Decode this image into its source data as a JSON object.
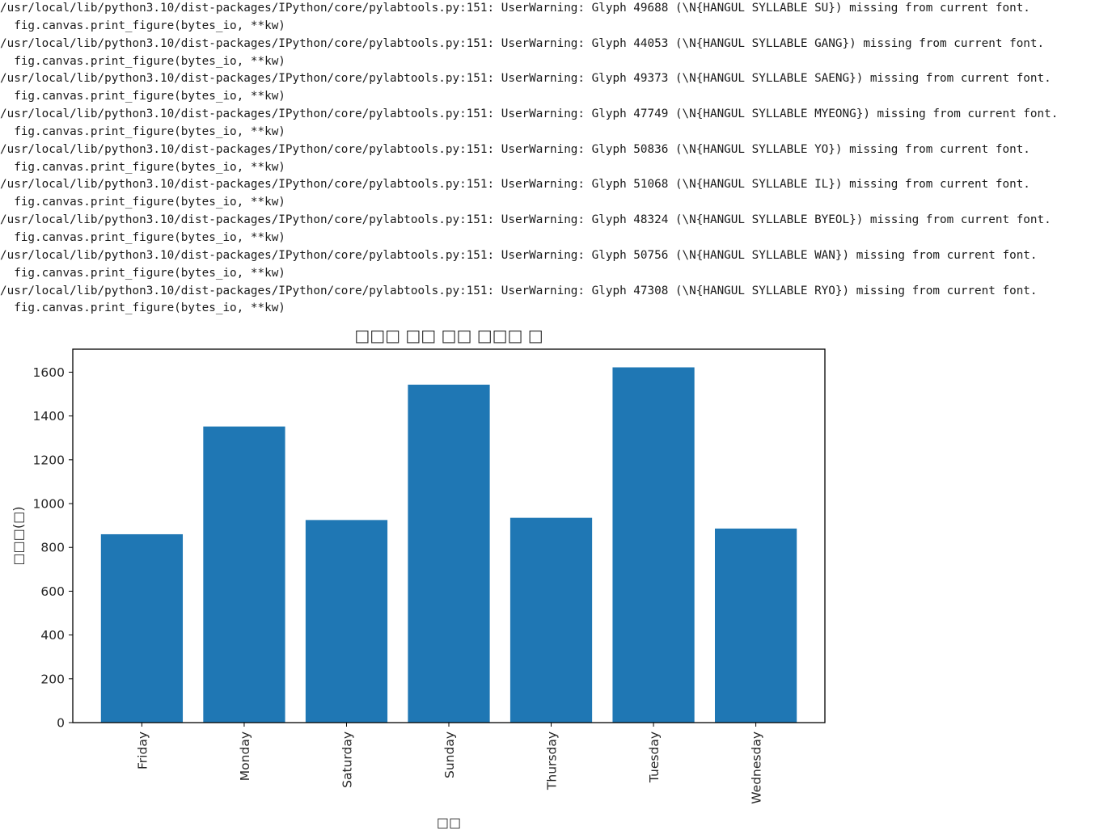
{
  "output": {
    "lines": [
      "/usr/local/lib/python3.10/dist-packages/IPython/core/pylabtools.py:151: UserWarning: Glyph 49688 (\\N{HANGUL SYLLABLE SU}) missing from current font.",
      "  fig.canvas.print_figure(bytes_io, **kw)",
      "/usr/local/lib/python3.10/dist-packages/IPython/core/pylabtools.py:151: UserWarning: Glyph 44053 (\\N{HANGUL SYLLABLE GANG}) missing from current font.",
      "  fig.canvas.print_figure(bytes_io, **kw)",
      "/usr/local/lib/python3.10/dist-packages/IPython/core/pylabtools.py:151: UserWarning: Glyph 49373 (\\N{HANGUL SYLLABLE SAENG}) missing from current font.",
      "  fig.canvas.print_figure(bytes_io, **kw)",
      "/usr/local/lib/python3.10/dist-packages/IPython/core/pylabtools.py:151: UserWarning: Glyph 47749 (\\N{HANGUL SYLLABLE MYEONG}) missing from current font.",
      "  fig.canvas.print_figure(bytes_io, **kw)",
      "/usr/local/lib/python3.10/dist-packages/IPython/core/pylabtools.py:151: UserWarning: Glyph 50836 (\\N{HANGUL SYLLABLE YO}) missing from current font.",
      "  fig.canvas.print_figure(bytes_io, **kw)",
      "/usr/local/lib/python3.10/dist-packages/IPython/core/pylabtools.py:151: UserWarning: Glyph 51068 (\\N{HANGUL SYLLABLE IL}) missing from current font.",
      "  fig.canvas.print_figure(bytes_io, **kw)",
      "/usr/local/lib/python3.10/dist-packages/IPython/core/pylabtools.py:151: UserWarning: Glyph 48324 (\\N{HANGUL SYLLABLE BYEOL}) missing from current font.",
      "  fig.canvas.print_figure(bytes_io, **kw)",
      "/usr/local/lib/python3.10/dist-packages/IPython/core/pylabtools.py:151: UserWarning: Glyph 50756 (\\N{HANGUL SYLLABLE WAN}) missing from current font.",
      "  fig.canvas.print_figure(bytes_io, **kw)",
      "/usr/local/lib/python3.10/dist-packages/IPython/core/pylabtools.py:151: UserWarning: Glyph 47308 (\\N{HANGUL SYLLABLE RYO}) missing from current font.",
      "  fig.canvas.print_figure(bytes_io, **kw)"
    ]
  },
  "chart_data": {
    "type": "bar",
    "title": "□□□ □□ □□ □□□ □",
    "xlabel": "□□",
    "ylabel": "□□□(□)",
    "categories": [
      "Friday",
      "Monday",
      "Saturday",
      "Sunday",
      "Thursday",
      "Tuesday",
      "Wednesday"
    ],
    "values": [
      860,
      1352,
      925,
      1543,
      935,
      1622,
      886
    ],
    "ylim": [
      0,
      1705
    ],
    "yticks": [
      0,
      200,
      400,
      600,
      800,
      1000,
      1200,
      1400,
      1600
    ],
    "bar_color": "#1f77b4",
    "grid": false,
    "legend": "none"
  }
}
